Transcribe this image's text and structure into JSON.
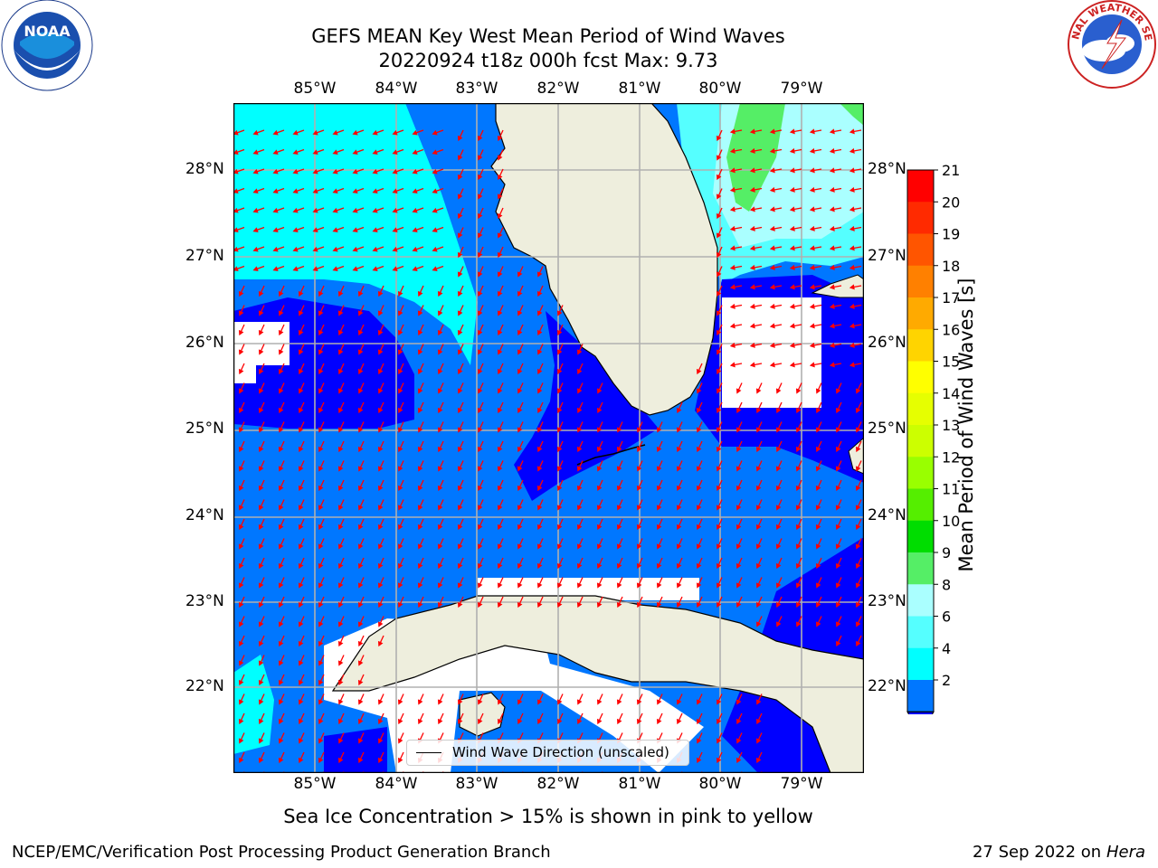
{
  "title_line1": "GEFS MEAN Key West Mean Period of Wind Waves",
  "title_line2": "20220924 t18z 000h fcst   Max: 9.73",
  "lon_ticks": [
    "85°W",
    "84°W",
    "83°W",
    "82°W",
    "81°W",
    "80°W",
    "79°W"
  ],
  "lat_ticks": [
    "28°N",
    "27°N",
    "26°N",
    "25°N",
    "24°N",
    "23°N",
    "22°N"
  ],
  "legend_label": "Wind Wave Direction (unscaled)",
  "colorbar": {
    "label": "Mean Period of Wind Waves [s]",
    "ticks": [
      "21",
      "20",
      "19",
      "18",
      "17",
      "16",
      "15",
      "14",
      "13",
      "12",
      "11",
      "10",
      "9",
      "8",
      "6",
      "4",
      "2"
    ],
    "colors": [
      "#ff0000",
      "#ff2a00",
      "#ff5500",
      "#ff8000",
      "#ffaa00",
      "#ffd400",
      "#ffff00",
      "#e6ff00",
      "#ccff00",
      "#99ff00",
      "#55ee00",
      "#00dd00",
      "#55ee66",
      "#aaffff",
      "#55ffff",
      "#00ffff",
      "#0077ff"
    ],
    "extend_color": "#0000ff"
  },
  "sea_ice_note": "Sea Ice Concentration > 15% is shown in pink to yellow",
  "footer_left": "NCEP/EMC/Verification Post Processing Product Generation Branch",
  "footer_date": "27 Sep 2022 on",
  "footer_host": "Hera",
  "logos": {
    "left": "NOAA",
    "right": "NATIONAL WEATHER SERVICE"
  },
  "colors": {
    "land": "#eeeedd",
    "blue2": "#0077ff",
    "blue_dark": "#0000ff",
    "cyan": "#00ffff",
    "lightcyan": "#aaffff",
    "green": "#55ee66",
    "arrow": "#ff0000"
  }
}
